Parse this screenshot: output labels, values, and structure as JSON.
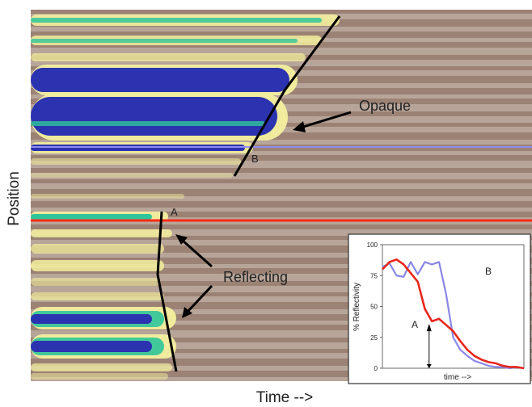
{
  "chart_data": [
    {
      "type": "heatmap",
      "xlabel": "Time -->",
      "ylabel": "Position",
      "annotations": [
        "Opaque",
        "Reflecting",
        "A",
        "B"
      ],
      "colors": {
        "background": "#a9968a",
        "dark_band": "#8f7363",
        "light_band": "#c7b7ab",
        "yellow": "#f3ef9e",
        "green": "#2fc59a",
        "blue": "#2c33b0",
        "trace_A": "#ff2a18",
        "trace_B": "#8f8df0"
      }
    },
    {
      "type": "line",
      "title": "",
      "xlabel": "time -->",
      "ylabel": "% Reflectivity",
      "ylim": [
        0,
        100
      ],
      "yticks": [
        "0",
        "25",
        "50",
        "75",
        "100"
      ],
      "x": [
        0,
        0.05,
        0.1,
        0.15,
        0.2,
        0.25,
        0.3,
        0.35,
        0.4,
        0.45,
        0.5,
        0.55,
        0.6,
        0.65,
        0.7,
        0.75,
        0.8,
        0.85,
        0.9,
        0.95,
        1.0
      ],
      "series": [
        {
          "name": "A",
          "color": "#e8271c",
          "values": [
            80,
            86,
            88,
            84,
            77,
            70,
            48,
            38,
            40,
            35,
            30,
            22,
            15,
            10,
            7,
            5,
            4,
            2,
            1,
            1,
            0
          ]
        },
        {
          "name": "B",
          "color": "#8a87e6",
          "values": [
            82,
            85,
            75,
            74,
            86,
            76,
            86,
            84,
            86,
            60,
            25,
            15,
            10,
            6,
            4,
            2,
            1,
            1,
            0,
            1,
            0
          ]
        }
      ],
      "markers": [
        {
          "label": "A",
          "x": 0.33
        }
      ]
    }
  ]
}
